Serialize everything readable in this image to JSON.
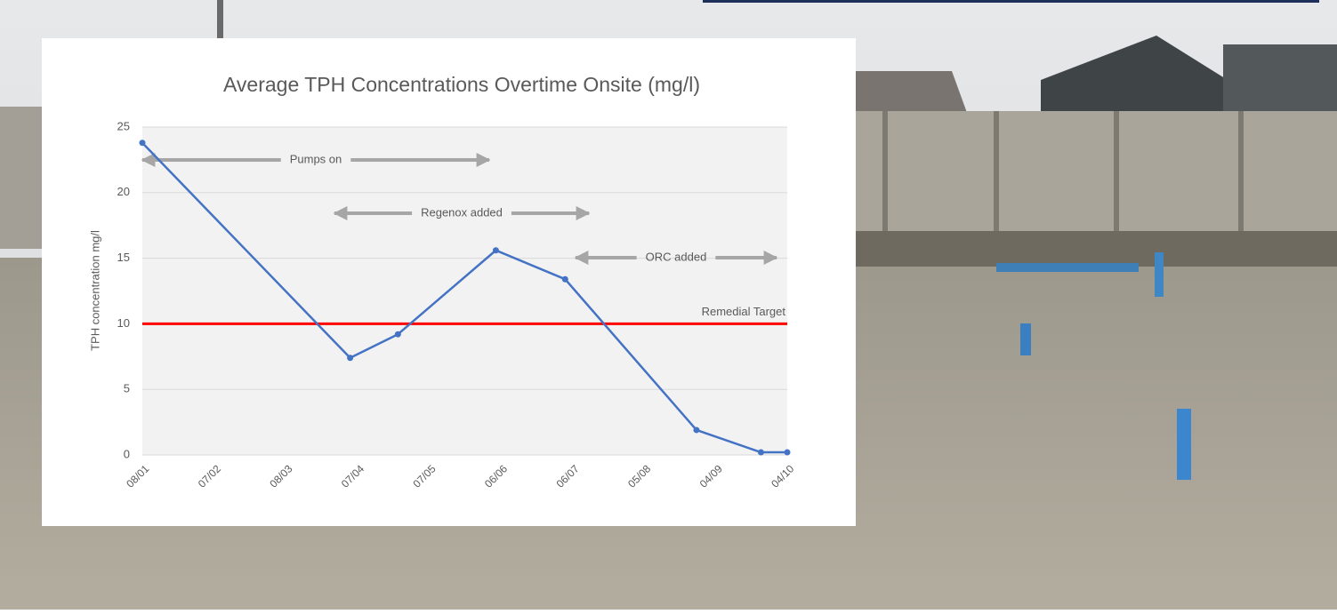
{
  "chart_data": {
    "type": "line",
    "title": "Average TPH Concentrations Overtime Onsite (mg/l)",
    "y_label": "TPH concentration mg/l",
    "x": [
      0,
      87,
      107,
      148,
      177,
      232,
      259,
      270
    ],
    "values": [
      23.8,
      7.4,
      9.2,
      15.6,
      13.4,
      1.9,
      0.2,
      0.2
    ],
    "color": "#4472c4",
    "xlim": [
      0,
      270
    ],
    "xticks": [
      {
        "value": 0,
        "label": "08/01"
      },
      {
        "value": 30,
        "label": "07/02"
      },
      {
        "value": 60,
        "label": "08/03"
      },
      {
        "value": 90,
        "label": "07/04"
      },
      {
        "value": 120,
        "label": "07/05"
      },
      {
        "value": 150,
        "label": "06/06"
      },
      {
        "value": 180,
        "label": "06/07"
      },
      {
        "value": 210,
        "label": "05/08"
      },
      {
        "value": 240,
        "label": "04/09"
      },
      {
        "value": 270,
        "label": "04/10"
      }
    ],
    "ylim": [
      0,
      25
    ],
    "yticks": [
      0,
      5,
      10,
      15,
      20,
      25
    ],
    "grid": true,
    "target": {
      "value": 10,
      "label": "Remedial Target",
      "color": "#ff0000"
    },
    "annotations": [
      "Pumps on",
      "Regenox added",
      "ORC added"
    ]
  }
}
